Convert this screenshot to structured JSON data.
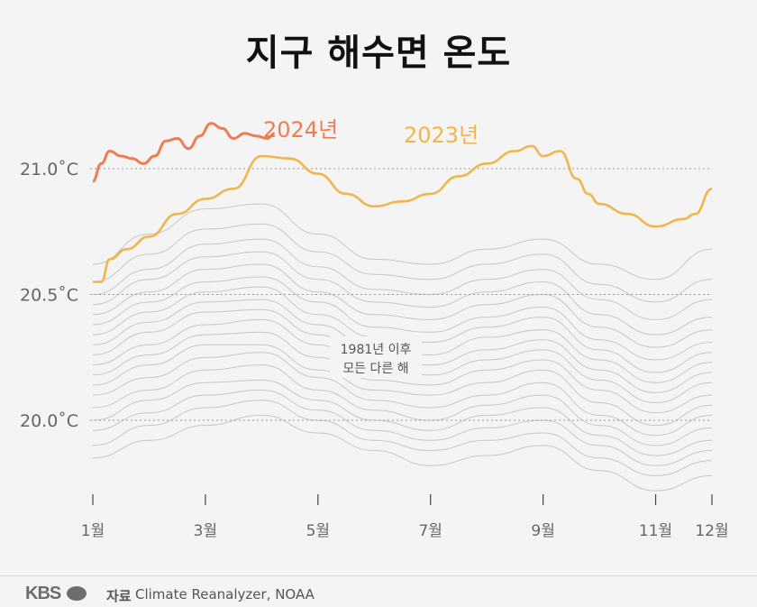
{
  "title": "지구 해수면 온도",
  "footer": {
    "logo": "KBS",
    "source_label": "자료",
    "source_text": "Climate Reanalyzer, NOAA"
  },
  "colors": {
    "y2024": "#ee7d52",
    "y2023": "#f2b54b",
    "background_years": "#c7c7c7",
    "grid": "#9a9a9a"
  },
  "chart_data": {
    "type": "line",
    "title": "지구 해수면 온도",
    "xlabel": "",
    "ylabel": "",
    "x_ticks": [
      "1월",
      "3월",
      "5월",
      "7월",
      "9월",
      "11월",
      "12월"
    ],
    "y_ticks": [
      "20.0˚C",
      "20.5˚C",
      "21.0˚C"
    ],
    "ylim": [
      19.7,
      21.3
    ],
    "grid": true,
    "background_note": [
      "1981년 이후",
      "모든 다른 해"
    ],
    "series": [
      {
        "name": "2024년",
        "months": [
          1.0,
          1.15,
          1.3,
          1.5,
          1.7,
          1.9,
          2.1,
          2.3,
          2.5,
          2.7,
          2.9,
          3.1,
          3.3,
          3.5,
          3.7,
          3.9,
          4.1,
          4.23
        ],
        "values": [
          20.95,
          21.02,
          21.07,
          21.05,
          21.04,
          21.02,
          21.05,
          21.11,
          21.12,
          21.08,
          21.13,
          21.18,
          21.16,
          21.12,
          21.14,
          21.13,
          21.12,
          21.14
        ]
      },
      {
        "name": "2023년",
        "months": [
          1.0,
          1.15,
          1.3,
          1.6,
          2.0,
          2.5,
          3.0,
          3.5,
          4.0,
          4.5,
          5.0,
          5.5,
          6.0,
          6.5,
          7.0,
          7.5,
          8.0,
          8.5,
          8.8,
          9.0,
          9.3,
          9.6,
          9.8,
          10.0,
          10.5,
          11.0,
          11.5,
          11.7,
          12.0
        ],
        "values": [
          20.55,
          20.55,
          20.64,
          20.68,
          20.73,
          20.82,
          20.88,
          20.92,
          21.05,
          21.04,
          20.98,
          20.9,
          20.85,
          20.87,
          20.9,
          20.97,
          21.02,
          21.07,
          21.09,
          21.05,
          21.07,
          20.96,
          20.9,
          20.86,
          20.82,
          20.77,
          20.8,
          20.82,
          20.92
        ]
      }
    ],
    "background_years": [
      {
        "months": [
          1,
          2,
          3,
          4,
          5,
          6,
          7,
          8,
          9,
          10,
          11,
          12
        ],
        "values": [
          19.85,
          19.92,
          19.98,
          20.02,
          19.95,
          19.88,
          19.82,
          19.86,
          19.9,
          19.8,
          19.72,
          19.78
        ]
      },
      {
        "months": [
          1,
          2,
          3,
          4,
          5,
          6,
          7,
          8,
          9,
          10,
          11,
          12
        ],
        "values": [
          19.9,
          19.98,
          20.05,
          20.08,
          20.0,
          19.92,
          19.88,
          19.92,
          19.95,
          19.85,
          19.78,
          19.84
        ]
      },
      {
        "months": [
          1,
          2,
          3,
          4,
          5,
          6,
          7,
          8,
          9,
          10,
          11,
          12
        ],
        "values": [
          19.96,
          20.03,
          20.1,
          20.12,
          20.04,
          19.96,
          19.92,
          19.97,
          20.0,
          19.9,
          19.82,
          19.88
        ]
      },
      {
        "months": [
          1,
          2,
          3,
          4,
          5,
          6,
          7,
          8,
          9,
          10,
          11,
          12
        ],
        "values": [
          20.0,
          20.08,
          20.15,
          20.16,
          20.08,
          20.0,
          19.96,
          20.02,
          20.05,
          19.94,
          19.86,
          19.92
        ]
      },
      {
        "months": [
          1,
          2,
          3,
          4,
          5,
          6,
          7,
          8,
          9,
          10,
          11,
          12
        ],
        "values": [
          20.05,
          20.12,
          20.2,
          20.22,
          20.12,
          20.04,
          20.0,
          20.06,
          20.1,
          19.98,
          19.9,
          19.97
        ]
      },
      {
        "months": [
          1,
          2,
          3,
          4,
          5,
          6,
          7,
          8,
          9,
          10,
          11,
          12
        ],
        "values": [
          20.1,
          20.17,
          20.25,
          20.27,
          20.17,
          20.08,
          20.05,
          20.1,
          20.15,
          20.02,
          19.94,
          20.02
        ]
      },
      {
        "months": [
          1,
          2,
          3,
          4,
          5,
          6,
          7,
          8,
          9,
          10,
          11,
          12
        ],
        "values": [
          20.14,
          20.22,
          20.3,
          20.3,
          20.2,
          20.12,
          20.1,
          20.15,
          20.2,
          20.07,
          19.98,
          20.06
        ]
      },
      {
        "months": [
          1,
          2,
          3,
          4,
          5,
          6,
          7,
          8,
          9,
          10,
          11,
          12
        ],
        "values": [
          20.18,
          20.26,
          20.34,
          20.35,
          20.25,
          20.16,
          20.14,
          20.2,
          20.24,
          20.12,
          20.03,
          20.1
        ]
      },
      {
        "months": [
          1,
          2,
          3,
          4,
          5,
          6,
          7,
          8,
          9,
          10,
          11,
          12
        ],
        "values": [
          20.22,
          20.3,
          20.38,
          20.4,
          20.3,
          20.2,
          20.18,
          20.24,
          20.28,
          20.16,
          20.07,
          20.15
        ]
      },
      {
        "months": [
          1,
          2,
          3,
          4,
          5,
          6,
          7,
          8,
          9,
          10,
          11,
          12
        ],
        "values": [
          20.26,
          20.35,
          20.43,
          20.44,
          20.34,
          20.24,
          20.22,
          20.28,
          20.32,
          20.2,
          20.11,
          20.19
        ]
      },
      {
        "months": [
          1,
          2,
          3,
          4,
          5,
          6,
          7,
          8,
          9,
          10,
          11,
          12
        ],
        "values": [
          20.3,
          20.39,
          20.47,
          20.48,
          20.38,
          20.28,
          20.26,
          20.33,
          20.36,
          20.24,
          20.15,
          20.23
        ]
      },
      {
        "months": [
          1,
          2,
          3,
          4,
          5,
          6,
          7,
          8,
          9,
          10,
          11,
          12
        ],
        "values": [
          20.34,
          20.43,
          20.51,
          20.53,
          20.42,
          20.33,
          20.31,
          20.37,
          20.41,
          20.28,
          20.19,
          20.27
        ]
      },
      {
        "months": [
          1,
          2,
          3,
          4,
          5,
          6,
          7,
          8,
          9,
          10,
          11,
          12
        ],
        "values": [
          20.38,
          20.47,
          20.55,
          20.57,
          20.47,
          20.37,
          20.35,
          20.41,
          20.45,
          20.32,
          20.24,
          20.31
        ]
      },
      {
        "months": [
          1,
          2,
          3,
          4,
          5,
          6,
          7,
          8,
          9,
          10,
          11,
          12
        ],
        "values": [
          20.42,
          20.51,
          20.6,
          20.62,
          20.51,
          20.42,
          20.4,
          20.46,
          20.5,
          20.37,
          20.29,
          20.36
        ]
      },
      {
        "months": [
          1,
          2,
          3,
          4,
          5,
          6,
          7,
          8,
          9,
          10,
          11,
          12
        ],
        "values": [
          20.46,
          20.56,
          20.65,
          20.67,
          20.56,
          20.47,
          20.45,
          20.51,
          20.55,
          20.42,
          20.34,
          20.41
        ]
      },
      {
        "months": [
          1,
          2,
          3,
          4,
          5,
          6,
          7,
          8,
          9,
          10,
          11,
          12
        ],
        "values": [
          20.5,
          20.6,
          20.7,
          20.72,
          20.61,
          20.52,
          20.5,
          20.56,
          20.6,
          20.48,
          20.4,
          20.48
        ]
      },
      {
        "months": [
          1,
          2,
          3,
          4,
          5,
          6,
          7,
          8,
          9,
          10,
          11,
          12
        ],
        "values": [
          20.55,
          20.66,
          20.76,
          20.78,
          20.67,
          20.58,
          20.56,
          20.62,
          20.66,
          20.54,
          20.47,
          20.56
        ]
      },
      {
        "months": [
          1,
          2,
          3,
          4,
          5,
          6,
          7,
          8,
          9,
          10,
          11,
          12
        ],
        "values": [
          20.62,
          20.74,
          20.84,
          20.86,
          20.74,
          20.64,
          20.62,
          20.68,
          20.72,
          20.62,
          20.56,
          20.68
        ]
      }
    ]
  }
}
